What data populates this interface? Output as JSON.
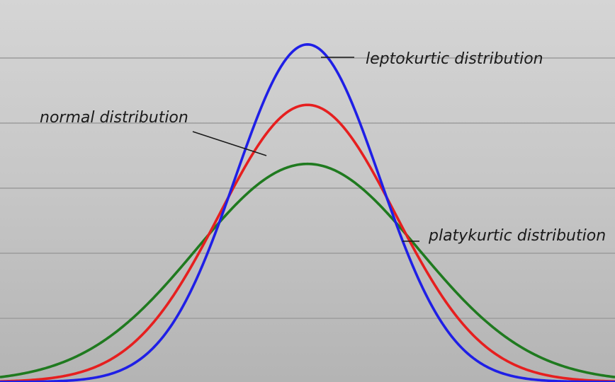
{
  "chart_data": {
    "type": "line",
    "title": "",
    "xlabel": "",
    "ylabel": "",
    "grid": true,
    "xlim": [
      -3.5,
      3.5
    ],
    "ylim": [
      0,
      0.55
    ],
    "series": [
      {
        "name": "leptokurtic distribution",
        "color": "#1f1fe6",
        "mean": 0,
        "sigma": 0.82,
        "peak": 0.486
      },
      {
        "name": "normal distribution",
        "color": "#e61f1f",
        "mean": 0,
        "sigma": 1.0,
        "peak": 0.399
      },
      {
        "name": "platykurtic distribution",
        "color": "#1f7a1f",
        "mean": 0,
        "sigma": 1.27,
        "peak": 0.314
      }
    ],
    "annotations": [
      {
        "text": "leptokurtic distribution",
        "series": 0
      },
      {
        "text": "normal distribution",
        "series": 1
      },
      {
        "text": "platykurtic distribution",
        "series": 2
      }
    ]
  }
}
